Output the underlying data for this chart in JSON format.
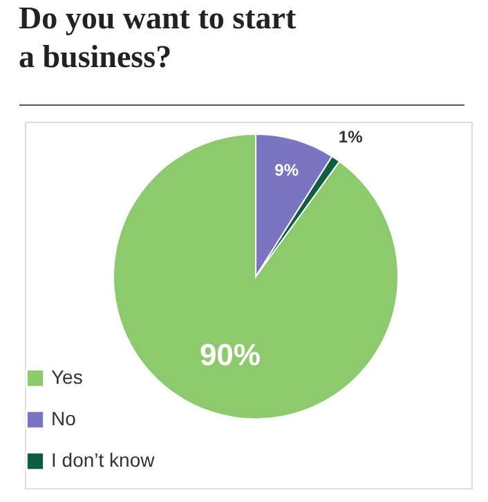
{
  "chart_data": {
    "type": "pie",
    "title": "Do you want to start a business?",
    "categories": [
      "Yes",
      "No",
      "I don’t know"
    ],
    "values": [
      90,
      9,
      1
    ],
    "colors": [
      "#8dc96d",
      "#7b74c1",
      "#0f5e41"
    ],
    "value_labels": [
      "90%",
      "9%",
      "1%"
    ],
    "legend": "bottom left"
  }
}
